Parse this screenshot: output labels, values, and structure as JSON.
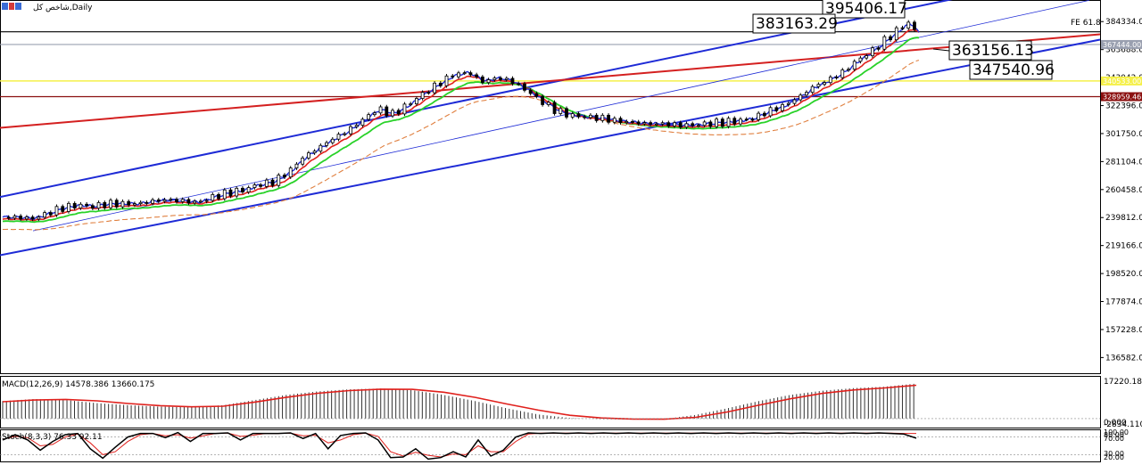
{
  "window": {
    "title": "شاخص کل,Daily"
  },
  "colors": {
    "candle_up": "#000000",
    "candle_down": "#000000",
    "ma_blue": "#1e2bd6",
    "ma_red": "#e0201c",
    "ma_green": "#29d229",
    "ma_orange": "#e08040",
    "channel_blue": "#1e2bd6",
    "trend_red": "#d42020",
    "hline_black": "#000000",
    "hline_yellow": "#f5f04a",
    "hline_darkred": "#8b1010",
    "hline_gray": "#9aa0b0",
    "macd_hist": "#333333",
    "macd_signal": "#e0201c",
    "stoch_main": "#000000",
    "stoch_signal": "#e0201c"
  },
  "chart_data": [
    {
      "type": "candlestick",
      "title": "شاخص کل,Daily",
      "ylim": [
        125000,
        395000
      ],
      "y_ticks": [
        "384334.00",
        "363688.00",
        "343042.00",
        "322396.00",
        "301750.00",
        "281104.00",
        "260458.00",
        "239812.00",
        "219166.00",
        "198520.00",
        "177874.00",
        "157228.00",
        "136582.00"
      ],
      "price_tags": [
        {
          "label": "367444.00",
          "value": 367444,
          "color": "#9aa0b0"
        },
        {
          "label": "340533.00",
          "value": 340533,
          "color": "#f5f04a"
        },
        {
          "label": "328959.46",
          "value": 328959.46,
          "color": "#8b1010"
        }
      ],
      "annotations": [
        {
          "text": "395406.17",
          "value": 395406.17
        },
        {
          "text": "383163.29",
          "value": 383163.29
        },
        {
          "text": "363156.13",
          "value": 363156.13
        },
        {
          "text": "347540.96",
          "value": 347540.96
        }
      ],
      "fibo_label": "FE 61.8",
      "horizontal_lines": [
        {
          "value": 376800,
          "color": "#000000"
        },
        {
          "value": 367444,
          "color": "#9aa0b0"
        },
        {
          "value": 340533,
          "color": "#f5f04a"
        },
        {
          "value": 328959.46,
          "color": "#8b1010"
        }
      ],
      "close_anchors": [
        [
          0,
          240000
        ],
        [
          10,
          240000
        ],
        [
          20,
          239000
        ],
        [
          30,
          243000
        ],
        [
          40,
          247000
        ],
        [
          50,
          249000
        ],
        [
          60,
          248000
        ],
        [
          70,
          250000
        ],
        [
          80,
          250000
        ],
        [
          90,
          250000
        ],
        [
          100,
          252000
        ],
        [
          110,
          253000
        ],
        [
          120,
          252000
        ],
        [
          130,
          251000
        ],
        [
          140,
          255000
        ],
        [
          150,
          258000
        ],
        [
          160,
          260000
        ],
        [
          170,
          264000
        ],
        [
          180,
          266000
        ],
        [
          190,
          273000
        ],
        [
          200,
          284000
        ],
        [
          210,
          291000
        ],
        [
          220,
          298000
        ],
        [
          230,
          304000
        ],
        [
          240,
          312000
        ],
        [
          250,
          320000
        ],
        [
          260,
          316000
        ],
        [
          270,
          323000
        ],
        [
          280,
          331000
        ],
        [
          290,
          338000
        ],
        [
          300,
          345000
        ],
        [
          310,
          347000
        ],
        [
          320,
          340000
        ],
        [
          330,
          343000
        ],
        [
          340,
          340000
        ],
        [
          350,
          333000
        ],
        [
          360,
          325000
        ],
        [
          370,
          318000
        ],
        [
          380,
          315000
        ],
        [
          390,
          314000
        ],
        [
          400,
          313000
        ],
        [
          410,
          311000
        ],
        [
          420,
          310000
        ],
        [
          430,
          309000
        ],
        [
          440,
          309000
        ],
        [
          450,
          308000
        ],
        [
          460,
          308000
        ],
        [
          470,
          309000
        ],
        [
          480,
          310000
        ],
        [
          490,
          311000
        ],
        [
          500,
          313000
        ],
        [
          510,
          318000
        ],
        [
          520,
          322000
        ],
        [
          530,
          328000
        ],
        [
          540,
          336000
        ],
        [
          550,
          341000
        ],
        [
          560,
          347000
        ],
        [
          570,
          356000
        ],
        [
          580,
          363000
        ],
        [
          590,
          372000
        ],
        [
          600,
          381000
        ],
        [
          605,
          384000
        ],
        [
          610,
          374000
        ]
      ]
    },
    {
      "type": "macd",
      "title": "MACD(12,26,9) 14578.386 13660.175",
      "y_ticks": [
        "17220.182",
        "0.000",
        "-2834.110"
      ],
      "ylim": [
        -3500,
        19000
      ],
      "hist_anchors": [
        [
          0,
          8500
        ],
        [
          50,
          9500
        ],
        [
          100,
          9000
        ],
        [
          150,
          7500
        ],
        [
          200,
          6500
        ],
        [
          250,
          5800
        ],
        [
          300,
          5500
        ],
        [
          350,
          6500
        ],
        [
          400,
          9000
        ],
        [
          450,
          11500
        ],
        [
          500,
          13200
        ],
        [
          550,
          14200
        ],
        [
          600,
          14600
        ],
        [
          650,
          13800
        ],
        [
          700,
          11500
        ],
        [
          750,
          8500
        ],
        [
          800,
          5000
        ],
        [
          850,
          2000
        ],
        [
          900,
          300
        ],
        [
          950,
          -300
        ],
        [
          1000,
          -500
        ],
        [
          1050,
          -200
        ],
        [
          1100,
          1800
        ],
        [
          1150,
          5000
        ],
        [
          1200,
          8500
        ],
        [
          1250,
          11500
        ],
        [
          1300,
          13500
        ],
        [
          1350,
          14800
        ],
        [
          1400,
          15500
        ],
        [
          1450,
          17000
        ]
      ],
      "signal_anchors": [
        [
          0,
          8200
        ],
        [
          50,
          9000
        ],
        [
          100,
          9300
        ],
        [
          150,
          8600
        ],
        [
          200,
          7300
        ],
        [
          250,
          6300
        ],
        [
          300,
          5700
        ],
        [
          350,
          6000
        ],
        [
          400,
          8000
        ],
        [
          450,
          10300
        ],
        [
          500,
          12300
        ],
        [
          550,
          13600
        ],
        [
          600,
          14300
        ],
        [
          650,
          14200
        ],
        [
          700,
          12800
        ],
        [
          750,
          10300
        ],
        [
          800,
          7100
        ],
        [
          850,
          4100
        ],
        [
          900,
          1600
        ],
        [
          950,
          300
        ],
        [
          1000,
          -200
        ],
        [
          1050,
          -300
        ],
        [
          1100,
          600
        ],
        [
          1150,
          3200
        ],
        [
          1200,
          6500
        ],
        [
          1250,
          9600
        ],
        [
          1300,
          12200
        ],
        [
          1350,
          13900
        ],
        [
          1400,
          14900
        ],
        [
          1450,
          16200
        ]
      ]
    },
    {
      "type": "stochastic",
      "title": "Stoch(8,3,3) 76.33 92.11",
      "y_ticks": [
        "100.00",
        "80.00",
        "70.00",
        "30.00",
        "20.00"
      ],
      "ylim": [
        0,
        100
      ],
      "main": [
        [
          0,
          70
        ],
        [
          20,
          88
        ],
        [
          40,
          70
        ],
        [
          60,
          35
        ],
        [
          80,
          65
        ],
        [
          100,
          88
        ],
        [
          120,
          92
        ],
        [
          140,
          40
        ],
        [
          160,
          8
        ],
        [
          180,
          45
        ],
        [
          200,
          80
        ],
        [
          220,
          92
        ],
        [
          240,
          92
        ],
        [
          260,
          78
        ],
        [
          280,
          95
        ],
        [
          300,
          65
        ],
        [
          320,
          92
        ],
        [
          340,
          92
        ],
        [
          360,
          94
        ],
        [
          380,
          70
        ],
        [
          400,
          92
        ],
        [
          420,
          92
        ],
        [
          440,
          92
        ],
        [
          460,
          94
        ],
        [
          480,
          75
        ],
        [
          500,
          92
        ],
        [
          520,
          40
        ],
        [
          540,
          85
        ],
        [
          560,
          92
        ],
        [
          580,
          94
        ],
        [
          600,
          70
        ],
        [
          620,
          10
        ],
        [
          640,
          12
        ],
        [
          660,
          40
        ],
        [
          680,
          5
        ],
        [
          700,
          10
        ],
        [
          720,
          30
        ],
        [
          740,
          12
        ],
        [
          760,
          70
        ],
        [
          780,
          15
        ],
        [
          800,
          35
        ],
        [
          820,
          80
        ],
        [
          840,
          94
        ],
        [
          860,
          92
        ],
        [
          880,
          94
        ],
        [
          900,
          92
        ],
        [
          920,
          94
        ],
        [
          940,
          92
        ],
        [
          960,
          94
        ],
        [
          980,
          92
        ],
        [
          1000,
          94
        ],
        [
          1020,
          92
        ],
        [
          1040,
          94
        ],
        [
          1060,
          92
        ],
        [
          1080,
          94
        ],
        [
          1100,
          92
        ],
        [
          1120,
          94
        ],
        [
          1140,
          92
        ],
        [
          1160,
          94
        ],
        [
          1180,
          92
        ],
        [
          1200,
          94
        ],
        [
          1220,
          92
        ],
        [
          1240,
          94
        ],
        [
          1260,
          92
        ],
        [
          1280,
          94
        ],
        [
          1300,
          92
        ],
        [
          1320,
          94
        ],
        [
          1340,
          92
        ],
        [
          1360,
          94
        ],
        [
          1380,
          92
        ],
        [
          1400,
          94
        ],
        [
          1420,
          92
        ],
        [
          1440,
          90
        ],
        [
          1460,
          76
        ]
      ],
      "signal": [
        [
          0,
          72
        ],
        [
          20,
          82
        ],
        [
          40,
          78
        ],
        [
          60,
          50
        ],
        [
          80,
          55
        ],
        [
          100,
          80
        ],
        [
          120,
          90
        ],
        [
          140,
          60
        ],
        [
          160,
          20
        ],
        [
          180,
          30
        ],
        [
          200,
          65
        ],
        [
          220,
          88
        ],
        [
          240,
          92
        ],
        [
          260,
          84
        ],
        [
          280,
          88
        ],
        [
          300,
          76
        ],
        [
          320,
          84
        ],
        [
          340,
          92
        ],
        [
          360,
          93
        ],
        [
          380,
          82
        ],
        [
          400,
          86
        ],
        [
          420,
          92
        ],
        [
          440,
          92
        ],
        [
          460,
          93
        ],
        [
          480,
          84
        ],
        [
          500,
          86
        ],
        [
          520,
          60
        ],
        [
          540,
          70
        ],
        [
          560,
          88
        ],
        [
          580,
          93
        ],
        [
          600,
          82
        ],
        [
          620,
          30
        ],
        [
          640,
          15
        ],
        [
          660,
          28
        ],
        [
          680,
          18
        ],
        [
          700,
          12
        ],
        [
          720,
          22
        ],
        [
          740,
          20
        ],
        [
          760,
          50
        ],
        [
          780,
          30
        ],
        [
          800,
          30
        ],
        [
          820,
          65
        ],
        [
          840,
          90
        ],
        [
          860,
          93
        ],
        [
          880,
          93
        ],
        [
          900,
          93
        ],
        [
          920,
          93
        ],
        [
          940,
          93
        ],
        [
          960,
          93
        ],
        [
          980,
          93
        ],
        [
          1000,
          93
        ],
        [
          1020,
          93
        ],
        [
          1040,
          93
        ],
        [
          1060,
          93
        ],
        [
          1080,
          93
        ],
        [
          1100,
          93
        ],
        [
          1120,
          93
        ],
        [
          1140,
          93
        ],
        [
          1160,
          93
        ],
        [
          1180,
          93
        ],
        [
          1200,
          93
        ],
        [
          1220,
          93
        ],
        [
          1240,
          93
        ],
        [
          1260,
          93
        ],
        [
          1280,
          93
        ],
        [
          1300,
          93
        ],
        [
          1320,
          93
        ],
        [
          1340,
          93
        ],
        [
          1360,
          93
        ],
        [
          1380,
          93
        ],
        [
          1400,
          93
        ],
        [
          1420,
          93
        ],
        [
          1440,
          92
        ],
        [
          1460,
          92
        ]
      ]
    }
  ]
}
